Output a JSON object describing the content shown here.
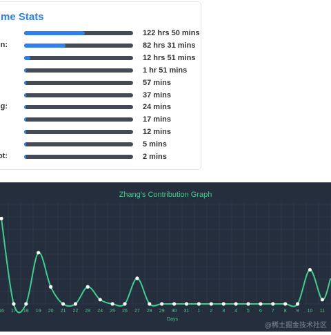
{
  "stats": {
    "title": "me Stats",
    "rows": [
      {
        "label": "",
        "value": "122 hrs 50 mins",
        "fill": 0.56
      },
      {
        "label": "n:",
        "value": "82 hrs 31 mins",
        "fill": 0.38
      },
      {
        "label": "",
        "value": "12 hrs 51 mins",
        "fill": 0.06
      },
      {
        "label": "",
        "value": "1 hr 51 mins",
        "fill": 0.02
      },
      {
        "label": "",
        "value": "57 mins",
        "fill": 0.02
      },
      {
        "label": "",
        "value": "37 mins",
        "fill": 0.02
      },
      {
        "label": "g:",
        "value": "24 mins",
        "fill": 0.02
      },
      {
        "label": "",
        "value": "17 mins",
        "fill": 0.02
      },
      {
        "label": "",
        "value": "12 mins",
        "fill": 0.02
      },
      {
        "label": "",
        "value": "5 mins",
        "fill": 0.02
      },
      {
        "label": "ot:",
        "value": "2 mins",
        "fill": 0.02
      }
    ]
  },
  "chart_data": {
    "type": "line",
    "title": "Zhang's Contribution Graph",
    "xlabel": "Days",
    "ylabel": "",
    "ylim": [
      0,
      11
    ],
    "grid": true,
    "categories": [
      "16",
      "17",
      "18",
      "19",
      "20",
      "21",
      "22",
      "23",
      "24",
      "25",
      "26",
      "27",
      "28",
      "29",
      "30",
      "31",
      "1",
      "2",
      "3",
      "4",
      "5",
      "6",
      "7",
      "8",
      "9",
      "10",
      "11"
    ],
    "series": [
      {
        "values": [
          10,
          0,
          0,
          6,
          2,
          0,
          0,
          2,
          0.5,
          0,
          0,
          3,
          0,
          0,
          0,
          0,
          0,
          0,
          0,
          0,
          0,
          0,
          0,
          0,
          0,
          4,
          0.5
        ]
      }
    ],
    "colors": {
      "line": "#3ecf8e",
      "point": "#ffffff",
      "text": "#3ecf8e",
      "grid": "#334155",
      "background": "#242e3d"
    }
  },
  "watermark": "@稀土掘金技术社区"
}
